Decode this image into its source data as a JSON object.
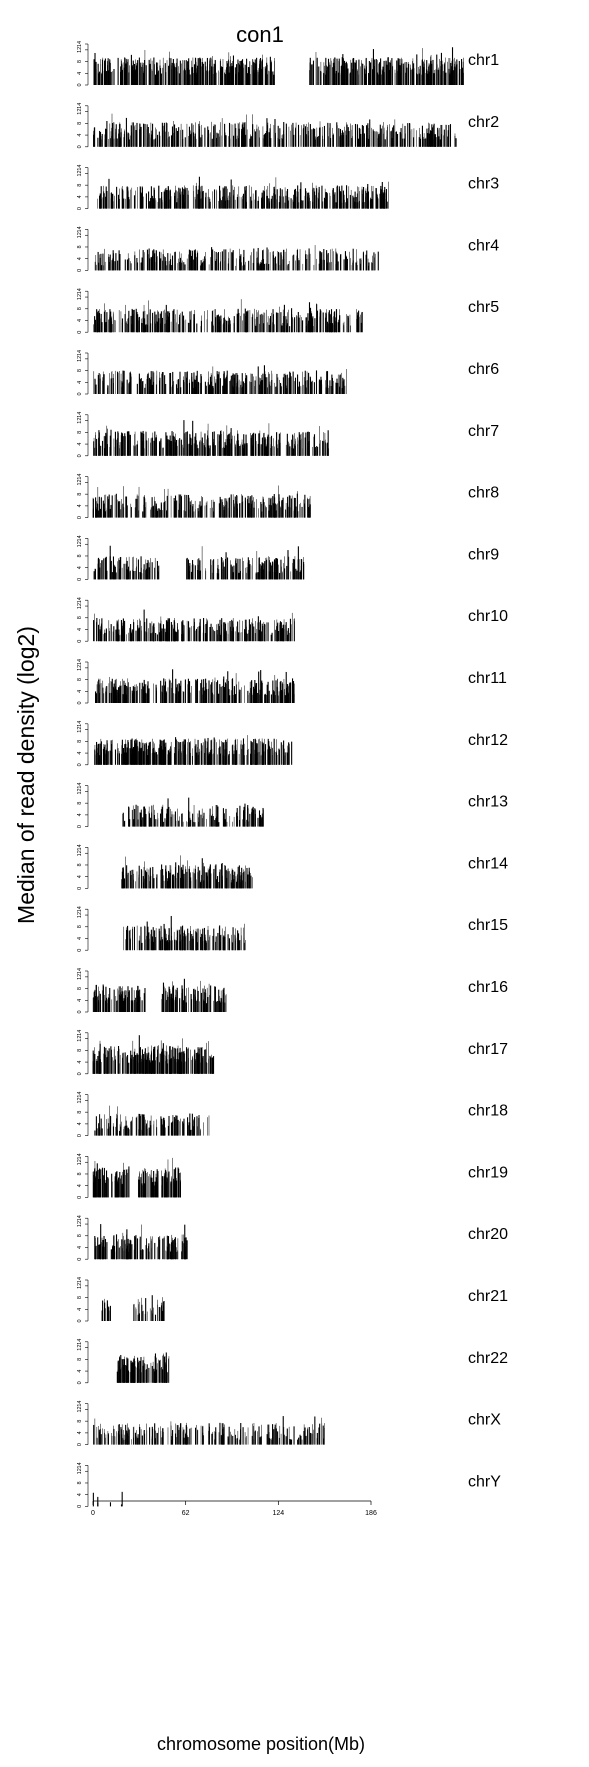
{
  "chart_data": {
    "type": "bar",
    "title": "con1",
    "ylabel": "Median of read density (log2)",
    "xlabel": "chromosome position(Mb)",
    "xlim": [
      0,
      186
    ],
    "ylim": [
      0,
      14
    ],
    "xticks": [
      "0",
      "62",
      "124",
      "186"
    ],
    "yticks": [
      "0",
      "4",
      "8",
      "12",
      "14"
    ],
    "yticks_note": "",
    "panels": [
      {
        "name": "chr1",
        "length": 249,
        "gaps": [
          [
            122,
            145
          ]
        ],
        "mean": 6.5,
        "density": 0.9
      },
      {
        "name": "chr2",
        "length": 243,
        "gaps": [],
        "mean": 5.5,
        "density": 0.6
      },
      {
        "name": "chr3",
        "length": 198,
        "gaps": [
          [
            0,
            3
          ]
        ],
        "mean": 5.0,
        "density": 0.7
      },
      {
        "name": "chr4",
        "length": 191,
        "gaps": [],
        "mean": 4.5,
        "density": 0.5
      },
      {
        "name": "chr5",
        "length": 181,
        "gaps": [],
        "mean": 5.0,
        "density": 0.6
      },
      {
        "name": "chr6",
        "length": 171,
        "gaps": [],
        "mean": 5.0,
        "density": 0.6
      },
      {
        "name": "chr7",
        "length": 159,
        "gaps": [],
        "mean": 5.5,
        "density": 0.7
      },
      {
        "name": "chr8",
        "length": 146,
        "gaps": [],
        "mean": 5.0,
        "density": 0.6
      },
      {
        "name": "chr9",
        "length": 141,
        "gaps": [
          [
            44,
            62
          ]
        ],
        "mean": 5.0,
        "density": 0.6
      },
      {
        "name": "chr10",
        "length": 135,
        "gaps": [],
        "mean": 5.0,
        "density": 0.7
      },
      {
        "name": "chr11",
        "length": 135,
        "gaps": [],
        "mean": 5.5,
        "density": 0.7
      },
      {
        "name": "chr12",
        "length": 133,
        "gaps": [],
        "mean": 6.0,
        "density": 0.8
      },
      {
        "name": "chr13",
        "length": 115,
        "gaps": [
          [
            0,
            19
          ]
        ],
        "mean": 4.5,
        "density": 0.5
      },
      {
        "name": "chr14",
        "length": 107,
        "gaps": [
          [
            0,
            19
          ]
        ],
        "mean": 5.0,
        "density": 0.7
      },
      {
        "name": "chr15",
        "length": 102,
        "gaps": [
          [
            0,
            20
          ]
        ],
        "mean": 5.5,
        "density": 0.7
      },
      {
        "name": "chr16",
        "length": 90,
        "gaps": [
          [
            35,
            46
          ]
        ],
        "mean": 6.0,
        "density": 0.8
      },
      {
        "name": "chr17",
        "length": 81,
        "gaps": [],
        "mean": 6.5,
        "density": 0.9
      },
      {
        "name": "chr18",
        "length": 78,
        "gaps": [],
        "mean": 4.5,
        "density": 0.5
      },
      {
        "name": "chr19",
        "length": 59,
        "gaps": [
          [
            25,
            30
          ]
        ],
        "mean": 7.0,
        "density": 0.95
      },
      {
        "name": "chr20",
        "length": 63,
        "gaps": [],
        "mean": 5.5,
        "density": 0.7
      },
      {
        "name": "chr21",
        "length": 48,
        "gaps": [
          [
            0,
            5
          ],
          [
            12,
            27
          ]
        ],
        "mean": 5.0,
        "density": 0.6
      },
      {
        "name": "chr22",
        "length": 51,
        "gaps": [
          [
            0,
            16
          ]
        ],
        "mean": 6.5,
        "density": 0.9
      },
      {
        "name": "chrX",
        "length": 155,
        "gaps": [],
        "mean": 4.5,
        "density": 0.5
      },
      {
        "name": "chrY",
        "length": 20,
        "gaps": [
          [
            1,
            3
          ],
          [
            4,
            11
          ],
          [
            12,
            19
          ]
        ],
        "mean": 3.5,
        "density": 0.15
      }
    ]
  }
}
